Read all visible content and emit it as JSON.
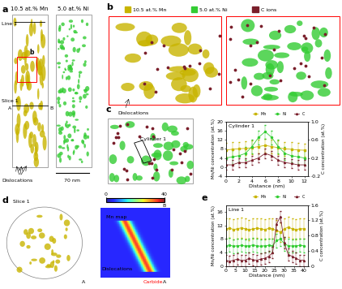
{
  "panel_labels": [
    "a",
    "b",
    "c",
    "d",
    "e"
  ],
  "panel_a": {
    "isosurfaces": [
      "10.5 at.% Mn",
      "5.0 at.% Ni"
    ],
    "line": "Line 1",
    "region": "b",
    "slice": "Slice 1",
    "ends": [
      "A",
      "B"
    ],
    "annotation": "Dislocations",
    "scale_bar": "70 nm"
  },
  "panel_b": {
    "keys": [
      "10.5 at.% Mn",
      "5.0 at.% Ni",
      "C ions"
    ],
    "annotation": "Dislocations"
  },
  "panel_c_image": {
    "label": "Cylinder 1"
  },
  "panel_d": {
    "slice": "Slice 1",
    "ends": [
      "A",
      "B"
    ],
    "map_title": "Mn map",
    "annotations": [
      "Dislocations",
      "Carbide"
    ],
    "colorbar_ticks": [
      0,
      40
    ]
  },
  "chart_data": [
    {
      "type": "line",
      "title": "Cylinder 1",
      "x_label": "Distance (nm)",
      "y_label": "Mn/Ni concentration (at.%)",
      "y2_label": "C concentration (at.%)",
      "x": [
        0,
        1,
        2,
        3,
        4,
        5,
        6,
        7,
        8,
        9,
        10,
        11,
        12
      ],
      "series": [
        {
          "name": "Mn",
          "color": "#c8b400",
          "marker": "square",
          "line_style": "solid",
          "values": [
            7.5,
            7.8,
            8,
            8.2,
            8.5,
            9,
            9.5,
            9,
            8.5,
            8,
            7.8,
            7.5,
            7.4
          ],
          "errors": [
            3,
            3,
            3,
            3,
            3,
            3,
            3,
            3,
            3,
            3,
            3,
            3,
            3
          ]
        },
        {
          "name": "Ni",
          "color": "#33cc33",
          "marker": "circle",
          "line_style": "solid",
          "values": [
            4,
            4.5,
            5,
            6,
            9,
            13,
            15.5,
            13,
            9,
            6,
            5,
            4.5,
            4
          ],
          "errors": [
            3,
            3,
            3,
            3,
            3,
            3,
            3,
            3,
            3,
            3,
            3,
            3,
            3
          ]
        },
        {
          "name": "C",
          "color": "#7a1f2b",
          "marker": "triangle",
          "line_style": "solid",
          "axis": "y2",
          "values": [
            0.05,
            0.05,
            0.1,
            0.1,
            0.15,
            0.2,
            0.3,
            0.25,
            0.15,
            0.1,
            0.08,
            0.05,
            0.05
          ],
          "errors": [
            0.1,
            0.1,
            0.1,
            0.1,
            0.1,
            0.1,
            0.1,
            0.1,
            0.1,
            0.1,
            0.1,
            0.1,
            0.1
          ]
        }
      ],
      "xlim": [
        0,
        12.5
      ],
      "xticks": [
        0,
        2,
        4,
        6,
        8,
        10,
        12
      ],
      "ylim": [
        -4,
        20
      ],
      "yticks": [
        -4,
        0,
        4,
        8,
        12,
        16,
        20
      ],
      "y2lim": [
        -0.2,
        1.0
      ],
      "y2ticks": [
        -0.2,
        0.2,
        0.6,
        1.0
      ],
      "legend": "upper right"
    },
    {
      "type": "line",
      "title": "Line 1",
      "x_label": "Distance (nm)",
      "y_label": "Mn/Ni concentration (at.%)",
      "y2_label": "C concentration (at.%)",
      "x": [
        0,
        2,
        4,
        6,
        8,
        10,
        12,
        14,
        16,
        18,
        20,
        22,
        24,
        26,
        28,
        30,
        32,
        34,
        36,
        38,
        40
      ],
      "series": [
        {
          "name": "Mn",
          "color": "#c8b400",
          "marker": "square",
          "line_style": "solid",
          "values": [
            11,
            11.2,
            10.8,
            11,
            11.3,
            11,
            10.7,
            11,
            11.2,
            11,
            10.8,
            11.1,
            11,
            10.5,
            10,
            11,
            11.5,
            11,
            10.8,
            11,
            11
          ],
          "errors": [
            3,
            3,
            3,
            3,
            3,
            3,
            3,
            3,
            3,
            3,
            3,
            3,
            3,
            3,
            3,
            3,
            3,
            3,
            3,
            3,
            3
          ]
        },
        {
          "name": "Ni",
          "color": "#33cc33",
          "marker": "circle",
          "line_style": "solid",
          "values": [
            6,
            6.2,
            5.8,
            6,
            6.1,
            5.9,
            6,
            6.2,
            6,
            5.8,
            6,
            6.1,
            6,
            7.5,
            8,
            6.5,
            6,
            5.9,
            6,
            6.1,
            6
          ],
          "errors": [
            2,
            2,
            2,
            2,
            2,
            2,
            2,
            2,
            2,
            2,
            2,
            2,
            2,
            2,
            2,
            2,
            2,
            2,
            2,
            2,
            2
          ]
        },
        {
          "name": "C",
          "color": "#7a1f2b",
          "marker": "triangle",
          "line_style": "solid",
          "axis": "y2",
          "values": [
            0.15,
            0.12,
            0.15,
            0.18,
            0.14,
            0.15,
            0.2,
            0.16,
            0.15,
            0.18,
            0.2,
            0.25,
            0.35,
            1.1,
            1.3,
            0.6,
            0.3,
            0.25,
            0.2,
            0.15,
            0.15
          ],
          "errors": [
            0.15,
            0.15,
            0.15,
            0.15,
            0.15,
            0.15,
            0.15,
            0.15,
            0.15,
            0.15,
            0.15,
            0.15,
            0.15,
            0.15,
            0.15,
            0.15,
            0.15,
            0.15,
            0.15,
            0.15,
            0.15
          ]
        }
      ],
      "xlim": [
        0,
        42
      ],
      "xticks": [
        0,
        5,
        10,
        15,
        20,
        25,
        30,
        35,
        40
      ],
      "ylim": [
        0,
        18
      ],
      "yticks": [
        0,
        4,
        8,
        12,
        16
      ],
      "y2lim": [
        0,
        1.6
      ],
      "y2ticks": [
        0,
        0.4,
        0.8,
        1.2,
        1.6
      ],
      "legend": "upper right"
    }
  ]
}
